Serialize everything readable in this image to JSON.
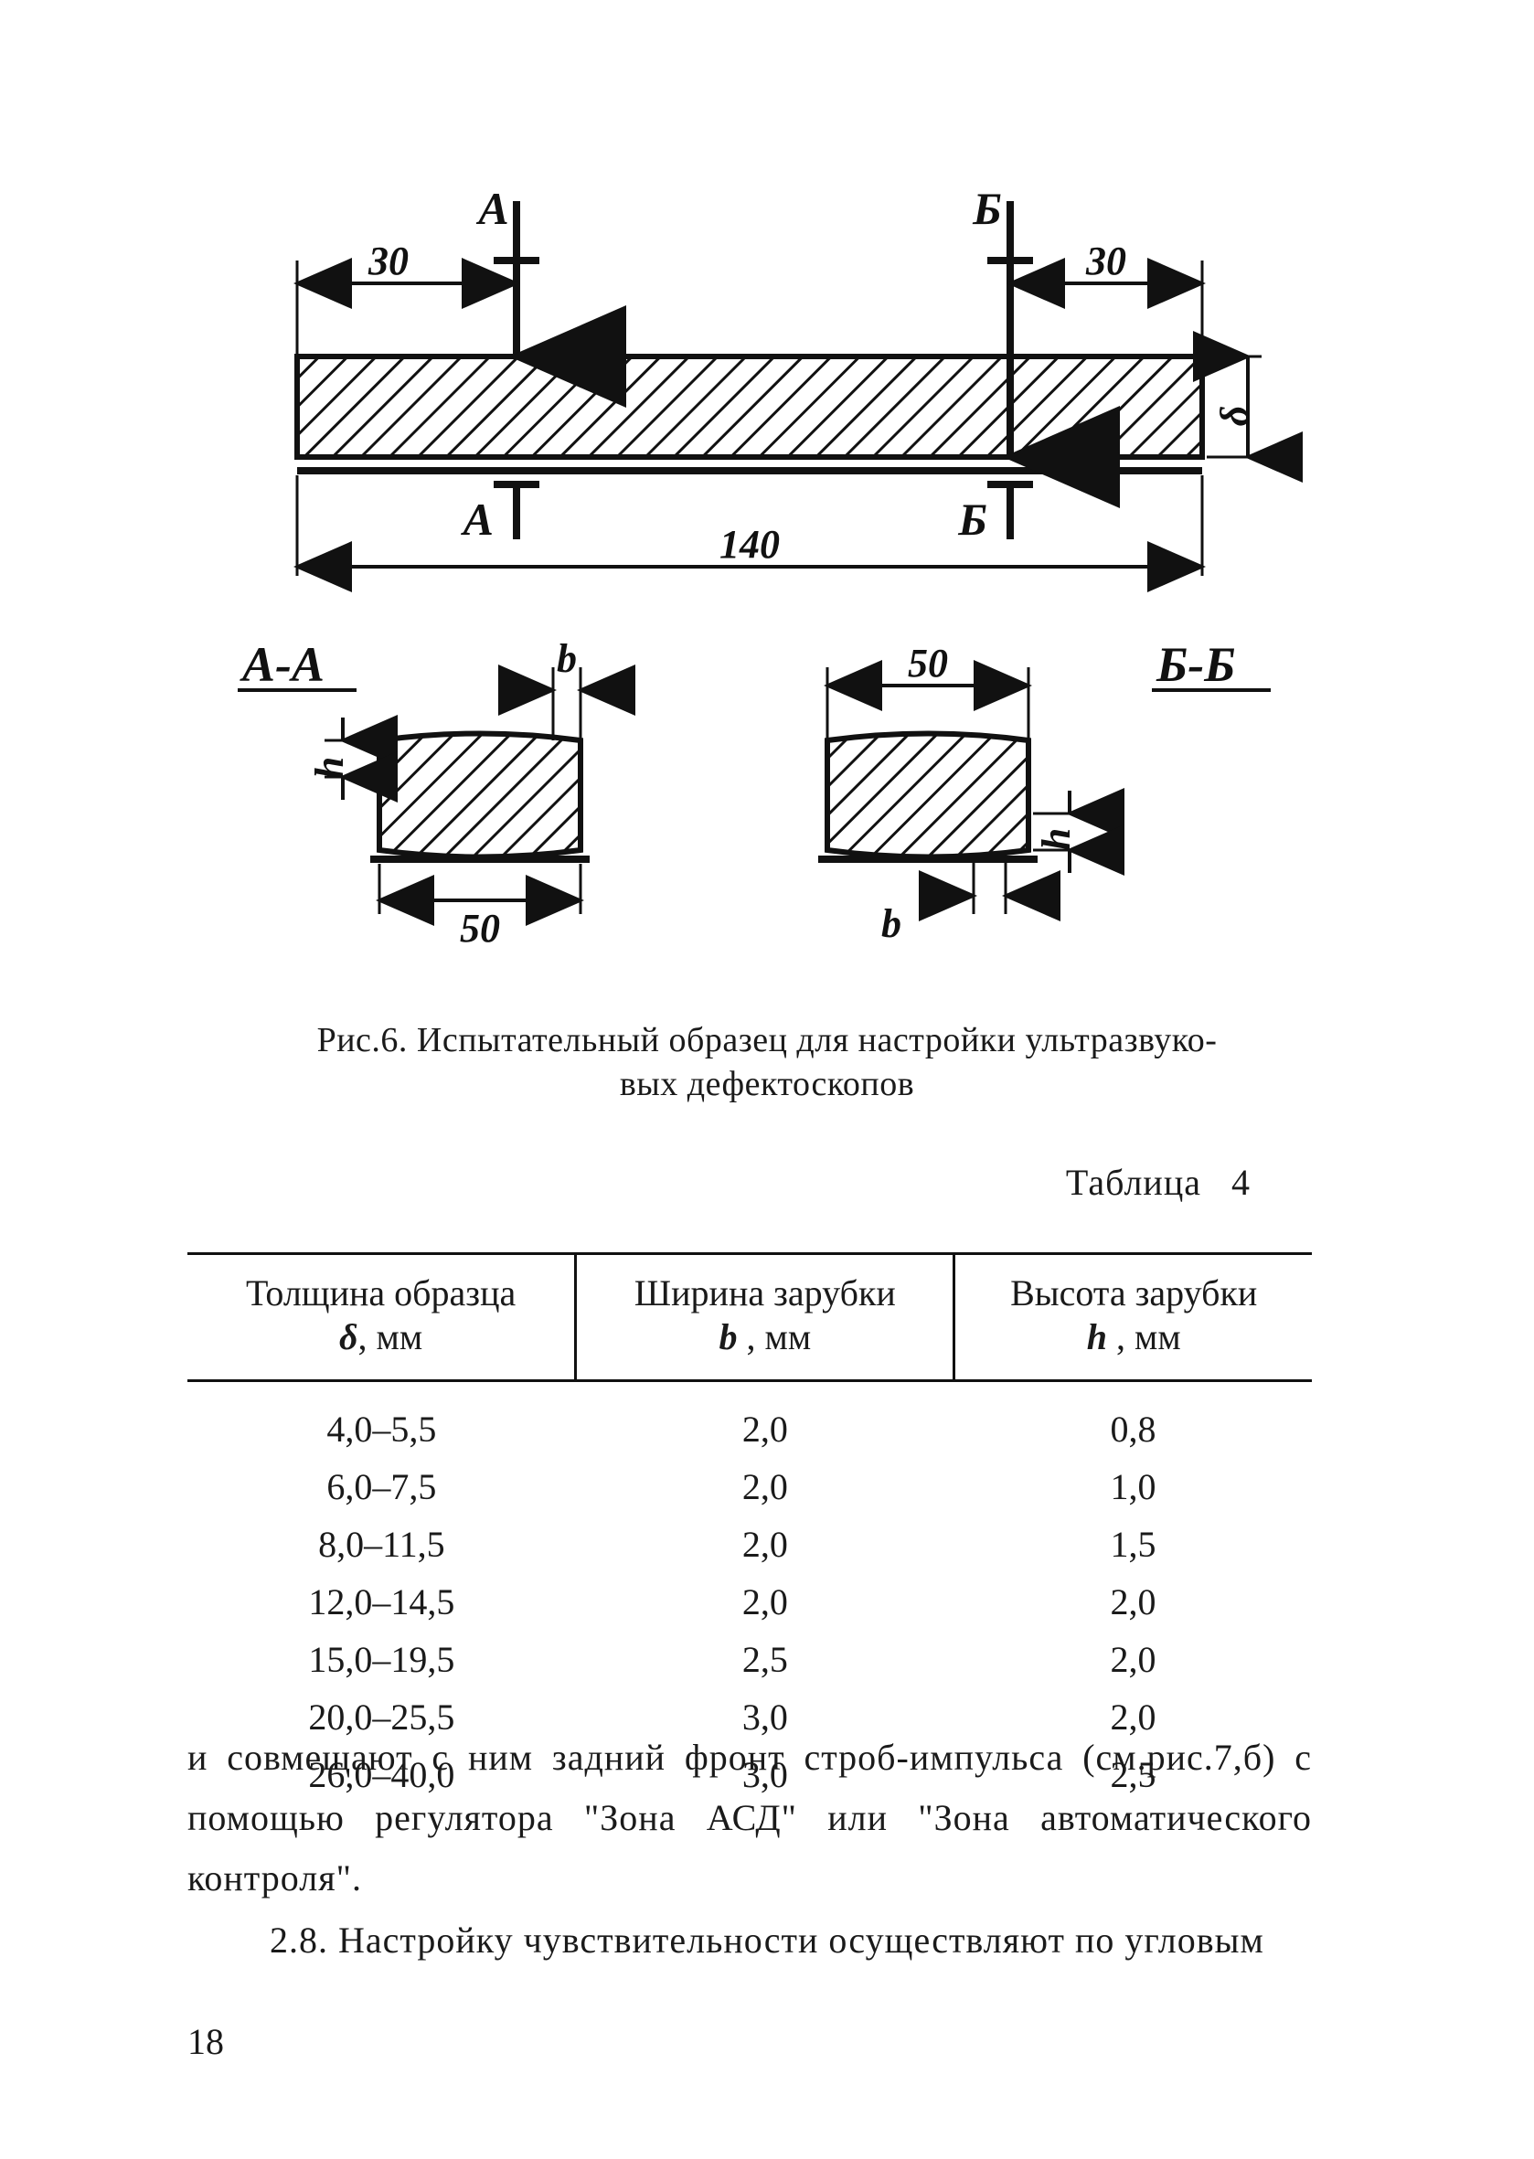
{
  "figure": {
    "top": {
      "dim_left": "30",
      "dim_right": "30",
      "dim_total": "140",
      "section_A": "А",
      "section_B": "Б",
      "thickness_sym": "δ"
    },
    "sections": {
      "left_label": "А-А",
      "right_label": "Б-Б",
      "dim_50": "50",
      "dim_b": "b",
      "dim_h": "h"
    }
  },
  "caption": {
    "line1": "Рис.6. Испытательный образец для настройки ультразвуко-",
    "line2": "вых дефектоскопов"
  },
  "table": {
    "title_word": "Таблица",
    "title_num": "4",
    "columns": [
      {
        "line1": "Толщина образца",
        "sym": "δ",
        "unit": ", мм"
      },
      {
        "line1": "Ширина зарубки",
        "sym": "b",
        "unit": " , мм"
      },
      {
        "line1": "Высота зарубки",
        "sym": "h",
        "unit": " , мм"
      }
    ],
    "rows": [
      [
        "4,0–5,5",
        "2,0",
        "0,8"
      ],
      [
        "6,0–7,5",
        "2,0",
        "1,0"
      ],
      [
        "8,0–11,5",
        "2,0",
        "1,5"
      ],
      [
        "12,0–14,5",
        "2,0",
        "2,0"
      ],
      [
        "15,0–19,5",
        "2,5",
        "2,0"
      ],
      [
        "20,0–25,5",
        "3,0",
        "2,0"
      ],
      [
        "26,0–40,0",
        "3,0",
        "2,5"
      ]
    ]
  },
  "body": {
    "p1": "и совмещают с ним задний фронт строб-импульса   (см.рис.7,б) с помощью  регулятора \"Зона АСД\" или \"Зона автоматического контроля\".",
    "p2": "2.8. Настройку чувствительности осуществляют по угловым"
  },
  "page_number": "18",
  "style": {
    "hatch_spacing": 18,
    "ink": "#111111"
  }
}
